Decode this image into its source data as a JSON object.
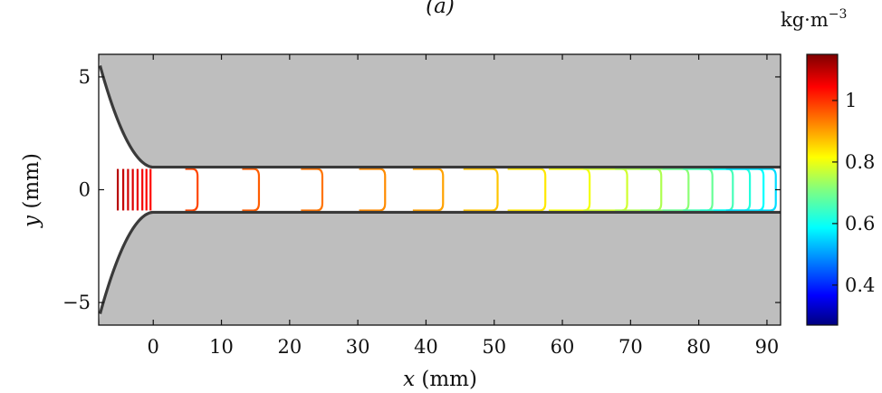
{
  "chart_data": {
    "type": "contour",
    "title": "(a)",
    "xlabel_var": "x",
    "xlabel_unit": "(mm)",
    "ylabel_var": "y",
    "ylabel_unit": "(mm)",
    "xlim": [
      -8,
      92
    ],
    "ylim": [
      -6,
      6
    ],
    "x_ticks": [
      0,
      10,
      20,
      30,
      40,
      50,
      60,
      70,
      80,
      90
    ],
    "y_ticks": [
      -5,
      0,
      5
    ],
    "y_tick_labels": [
      "−5",
      "0",
      "5"
    ],
    "channel_half_width": 1,
    "colorbar": {
      "unit_text": "kg·m",
      "unit_exp": "−3",
      "range": [
        0.27,
        1.15
      ],
      "ticks": [
        0.4,
        0.6,
        0.8,
        1
      ],
      "tick_labels": [
        "0.4",
        "0.6",
        "0.8",
        "1"
      ],
      "colormap": "jet"
    },
    "contour_levels": [
      {
        "x": -5.2,
        "v": 1.1
      },
      {
        "x": -4.4,
        "v": 1.09
      },
      {
        "x": -3.7,
        "v": 1.08
      },
      {
        "x": -3.0,
        "v": 1.07
      },
      {
        "x": -2.3,
        "v": 1.06
      },
      {
        "x": -1.6,
        "v": 1.05
      },
      {
        "x": -1.0,
        "v": 1.04
      },
      {
        "x": -0.4,
        "v": 1.03
      },
      {
        "x": 6.5,
        "v": 0.98
      },
      {
        "x": 15.5,
        "v": 0.96
      },
      {
        "x": 24.8,
        "v": 0.94
      },
      {
        "x": 34.0,
        "v": 0.92
      },
      {
        "x": 42.5,
        "v": 0.9
      },
      {
        "x": 50.5,
        "v": 0.87
      },
      {
        "x": 57.5,
        "v": 0.84
      },
      {
        "x": 64.0,
        "v": 0.81
      },
      {
        "x": 69.5,
        "v": 0.78
      },
      {
        "x": 74.5,
        "v": 0.75
      },
      {
        "x": 78.5,
        "v": 0.72
      },
      {
        "x": 82.0,
        "v": 0.69
      },
      {
        "x": 85.0,
        "v": 0.66
      },
      {
        "x": 87.5,
        "v": 0.63
      },
      {
        "x": 89.5,
        "v": 0.6
      },
      {
        "x": 91.3,
        "v": 0.57
      }
    ]
  },
  "colors": {
    "wall_fill": "#bebebe",
    "wall_stroke": "#3a3a3a",
    "axis": "#111111"
  }
}
